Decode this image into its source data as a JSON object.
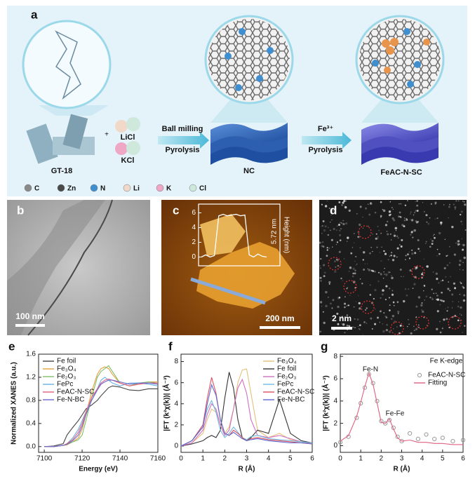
{
  "figure": {
    "panel_labels": [
      "a",
      "b",
      "c",
      "d"
    ],
    "a": {
      "steps": [
        "Ball milling",
        "Pyrolysis",
        "Fe³⁺",
        "Pyrolysis"
      ],
      "materials": [
        "GT-18",
        "LiCl",
        "KCl",
        "NC",
        "FeAC-N-SC"
      ],
      "elements": [
        {
          "symbol": "C",
          "color": "#8a8a8a"
        },
        {
          "symbol": "Zn",
          "color": "#4a4a4a"
        },
        {
          "symbol": "N",
          "color": "#3f8fd0"
        },
        {
          "symbol": "Li",
          "color": "#f1d9c9"
        },
        {
          "symbol": "K",
          "color": "#efa7c6"
        },
        {
          "symbol": "Cl",
          "color": "#cfe8dc"
        }
      ]
    },
    "b": {
      "scale_bar": "100 nm"
    },
    "c": {
      "scale_bar": "200 nm",
      "inset": {
        "ylabel": "Height (nm)",
        "annotation": "5.72 nm",
        "ylim": [
          -1,
          7
        ],
        "yticks": [
          0,
          2,
          4,
          6
        ],
        "profile": [
          0,
          0.3,
          0,
          0.2,
          5.6,
          5.8,
          5.6,
          5.7,
          5.8,
          5.6,
          5.7,
          0.3,
          0,
          0.4,
          0.1,
          0
        ]
      }
    },
    "d": {
      "scale_bar": "2 nm"
    }
  },
  "chart_data": [
    {
      "type": "line",
      "label": "e",
      "xlabel": "Energy (eV)",
      "ylabel": "Normalized XANES (a.u.)",
      "xlim": [
        7097,
        7160
      ],
      "ylim": [
        -0.1,
        1.6
      ],
      "xticks": [
        7100,
        7120,
        7140,
        7160
      ],
      "yticks": [
        {
          "value": 0,
          "label": "0.0"
        },
        {
          "value": 0.4,
          "label": "0.4"
        },
        {
          "value": 0.8,
          "label": "0.8"
        },
        {
          "value": 1.2,
          "label": "1.2"
        },
        {
          "value": 1.6,
          "label": "1.6"
        }
      ],
      "legend": "upper left",
      "x": [
        7100,
        7105,
        7110,
        7112,
        7115,
        7118,
        7120,
        7122,
        7125,
        7128,
        7130,
        7132,
        7134,
        7136,
        7140,
        7145,
        7150,
        7155,
        7160
      ],
      "series": [
        {
          "name": "Fe foil",
          "color": "#444444",
          "values": [
            0,
            0.01,
            0.05,
            0.2,
            0.33,
            0.45,
            0.55,
            0.65,
            0.72,
            0.8,
            0.88,
            0.95,
            1.02,
            1.05,
            1.03,
            0.98,
            0.97,
            1.0,
            1.0
          ]
        },
        {
          "name": "Fe₃O₄",
          "color": "#e8a040",
          "values": [
            0,
            0,
            0.02,
            0.03,
            0.08,
            0.15,
            0.3,
            0.55,
            0.95,
            1.25,
            1.35,
            1.38,
            1.35,
            1.25,
            1.1,
            1.05,
            1.08,
            1.12,
            1.12
          ]
        },
        {
          "name": "Fe₂O₃",
          "color": "#7fbf6a",
          "values": [
            0,
            0,
            0.02,
            0.04,
            0.08,
            0.12,
            0.2,
            0.45,
            0.85,
            1.2,
            1.3,
            1.35,
            1.4,
            1.3,
            1.1,
            1.05,
            1.1,
            1.12,
            1.1
          ]
        },
        {
          "name": "FePc",
          "color": "#6ab0e0",
          "values": [
            0,
            0,
            0.02,
            0.05,
            0.15,
            0.3,
            0.45,
            0.6,
            0.8,
            1.0,
            1.15,
            1.2,
            1.15,
            1.1,
            1.05,
            1.1,
            1.1,
            1.08,
            1.05
          ]
        },
        {
          "name": "FeAC-N-SC",
          "color": "#e0607a",
          "values": [
            0,
            0,
            0.02,
            0.05,
            0.12,
            0.25,
            0.4,
            0.6,
            0.85,
            1.0,
            1.1,
            1.15,
            1.17,
            1.15,
            1.1,
            1.05,
            1.08,
            1.1,
            1.1
          ]
        },
        {
          "name": "Fe-N-BC",
          "color": "#6a6ad0",
          "values": [
            0,
            0,
            0.02,
            0.04,
            0.1,
            0.2,
            0.35,
            0.55,
            0.8,
            0.98,
            1.08,
            1.12,
            1.15,
            1.15,
            1.12,
            1.08,
            1.1,
            1.1,
            1.08
          ]
        }
      ]
    },
    {
      "type": "line",
      "label": "f",
      "xlabel": "R (Å)",
      "ylabel": "|FT (k²χ(k))| (Å⁻³)",
      "xlim": [
        0,
        6
      ],
      "ylim": [
        -0.6,
        8.7
      ],
      "xticks": [
        0,
        1,
        2,
        3,
        4,
        5,
        6
      ],
      "yticks": [
        0,
        2,
        4,
        6,
        8
      ],
      "legend": "upper right",
      "x": [
        0,
        0.5,
        1,
        1.2,
        1.4,
        1.6,
        1.8,
        2,
        2.2,
        2.4,
        2.6,
        2.8,
        3,
        3.2,
        3.5,
        4,
        4.5,
        5,
        5.5,
        6
      ],
      "series": [
        {
          "name": "Fe₃O₄",
          "color": "#e3c27a",
          "values": [
            0,
            0.3,
            1.2,
            2.5,
            3.5,
            3.2,
            2.0,
            1.2,
            1.8,
            3.5,
            6.0,
            7.2,
            7.3,
            5,
            1.5,
            0.8,
            1.2,
            0.6,
            0.4,
            0.2
          ]
        },
        {
          "name": "Fe foil",
          "color": "#333333",
          "values": [
            0,
            0.2,
            0.5,
            0.8,
            1.0,
            0.8,
            1.5,
            4.5,
            7.0,
            5.5,
            2.5,
            0.8,
            0.5,
            0.8,
            1.5,
            1.2,
            4.4,
            1.2,
            0.5,
            0.3
          ]
        },
        {
          "name": "Fe₂O₃",
          "color": "#d070c0",
          "values": [
            0,
            0.3,
            1.5,
            3.0,
            4.0,
            3.5,
            2.0,
            1.0,
            1.5,
            3.5,
            5.5,
            6.3,
            5.0,
            2.5,
            1.0,
            0.8,
            1.0,
            0.7,
            0.4,
            0.2
          ]
        },
        {
          "name": "FePc",
          "color": "#70b8e0",
          "values": [
            0,
            0.5,
            2.0,
            3.5,
            4.3,
            3.2,
            1.5,
            0.8,
            1.2,
            1.8,
            1.3,
            0.8,
            0.6,
            0.9,
            1.0,
            0.7,
            0.6,
            0.5,
            0.4,
            0.3
          ]
        },
        {
          "name": "FeAC-N-SC",
          "color": "#e05060",
          "values": [
            0,
            0.5,
            2.0,
            4.5,
            6.5,
            5.0,
            2.5,
            1.2,
            1.0,
            1.5,
            1.2,
            0.8,
            0.5,
            0.7,
            0.8,
            0.6,
            0.5,
            0.4,
            0.3,
            0.2
          ]
        },
        {
          "name": "Fe-N-BC",
          "color": "#5a6ad0",
          "values": [
            0,
            0.5,
            1.8,
            4.0,
            5.8,
            4.8,
            2.5,
            1.2,
            1.0,
            1.3,
            1.0,
            0.7,
            0.5,
            0.6,
            0.7,
            0.5,
            0.4,
            0.3,
            0.3,
            0.2
          ]
        }
      ]
    },
    {
      "type": "line",
      "label": "g",
      "xlabel": "R (Å)",
      "ylabel": "|FT (k²χ(k))| (Å⁻³)",
      "xlim": [
        0,
        6
      ],
      "ylim": [
        -0.6,
        8.2
      ],
      "xticks": [
        0,
        1,
        2,
        3,
        4,
        5,
        6
      ],
      "yticks": [
        0,
        2,
        4,
        6,
        8
      ],
      "legend": "upper right",
      "annotations": [
        "Fe K-edge",
        "Fe-N",
        "Fe-Fe"
      ],
      "x": [
        0,
        0.4,
        0.8,
        1.0,
        1.2,
        1.4,
        1.6,
        1.8,
        2.0,
        2.2,
        2.4,
        2.6,
        2.8,
        3.0,
        3.4,
        3.8,
        4.2,
        4.6,
        5.0,
        5.5,
        6.0
      ],
      "series": [
        {
          "name": "FeAC-N-SC",
          "color": "#999999",
          "style": "markers",
          "values": [
            0.3,
            0.8,
            2.5,
            3.8,
            5.2,
            6.4,
            5.6,
            4.0,
            2.2,
            2.0,
            2.3,
            1.6,
            0.8,
            0.4,
            1.1,
            0.6,
            1.0,
            0.6,
            0.7,
            0.4,
            0.5
          ]
        },
        {
          "name": "Fitting",
          "color": "#e06080",
          "style": "line",
          "values": [
            0.4,
            0.9,
            2.6,
            3.9,
            5.3,
            6.5,
            5.5,
            3.8,
            2.1,
            2.0,
            2.4,
            1.5,
            0.7,
            0.4,
            0.5,
            0.3,
            0.3,
            0.2,
            0.2,
            0.1,
            0.1
          ]
        }
      ]
    }
  ]
}
